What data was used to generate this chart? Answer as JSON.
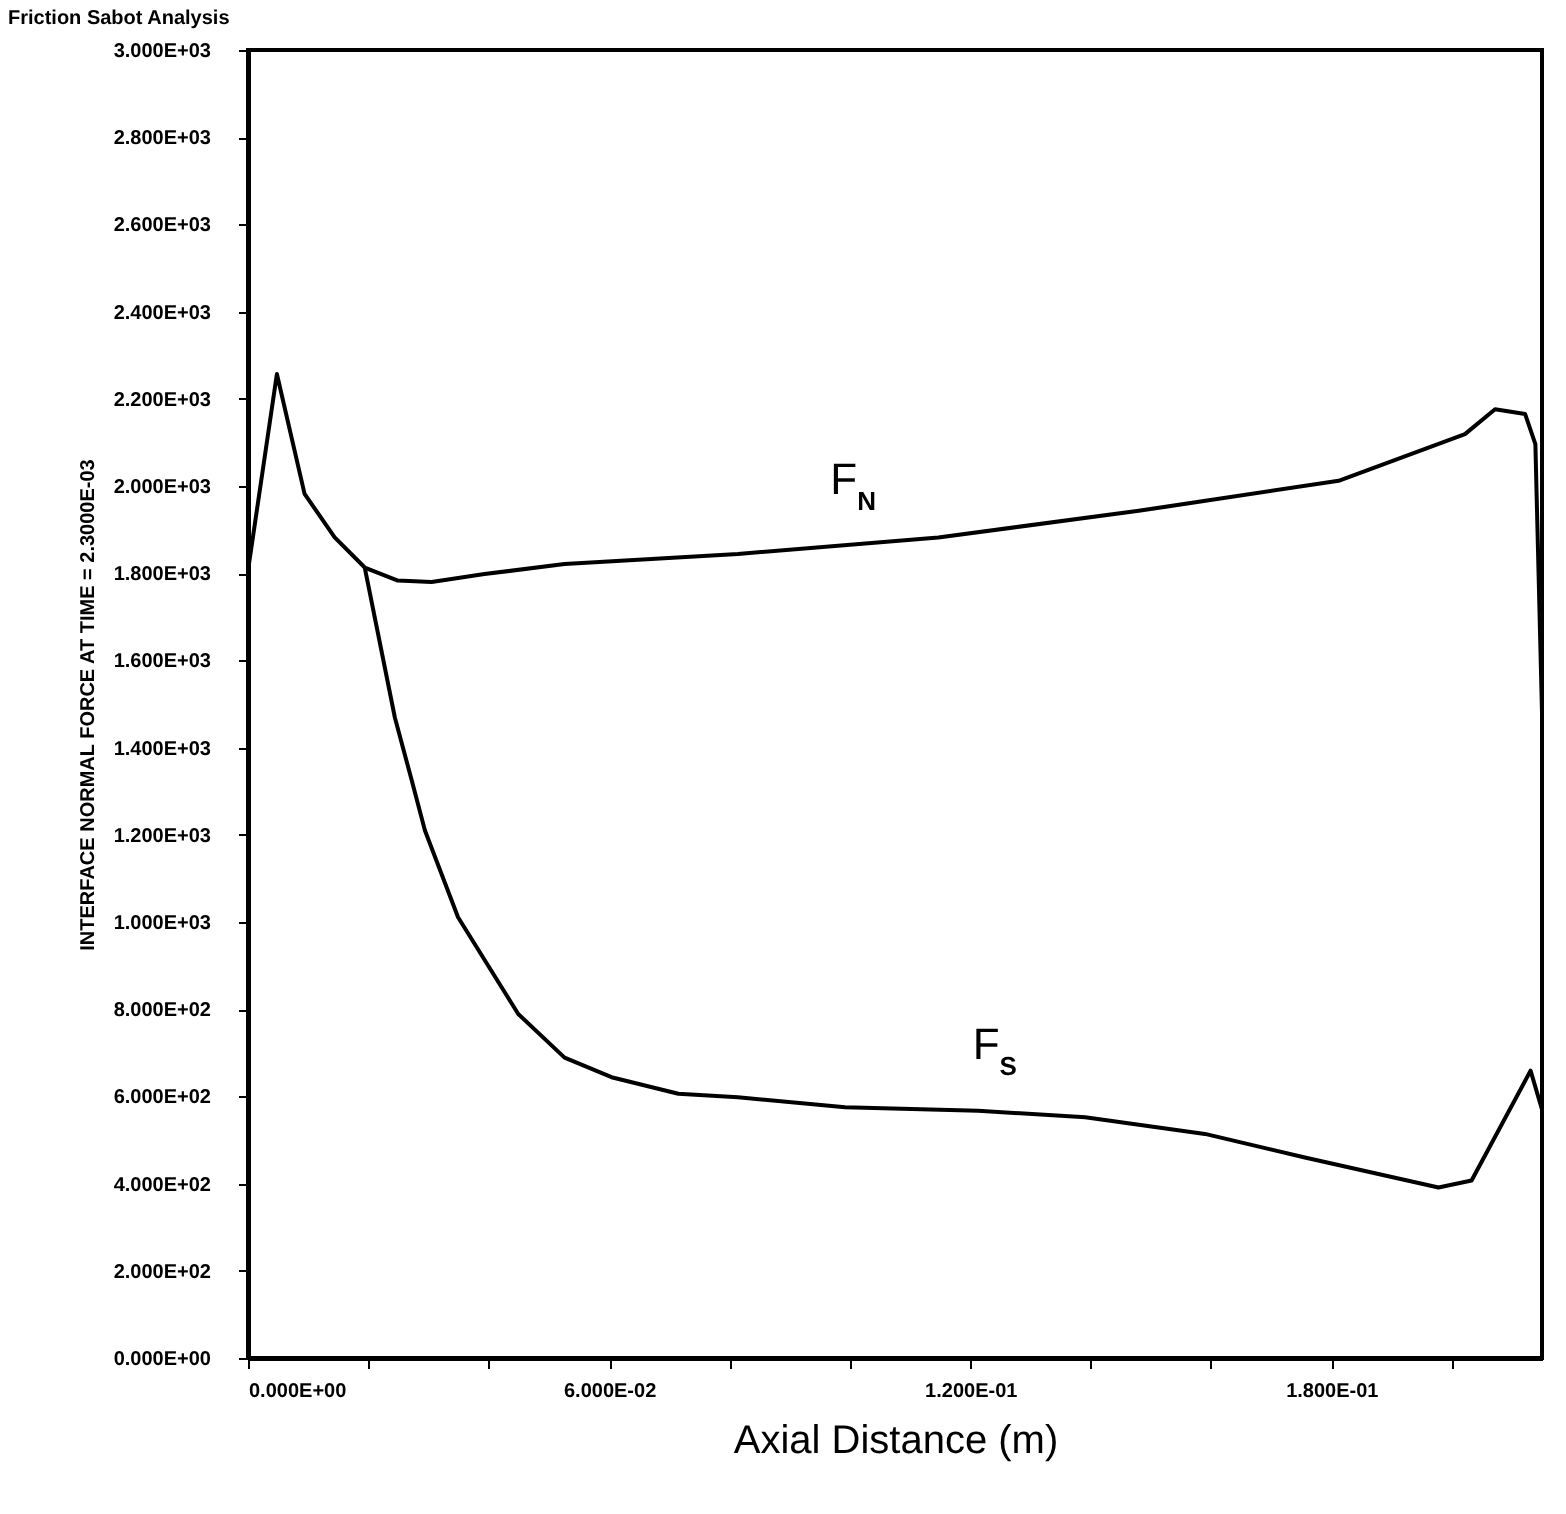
{
  "chart_data": {
    "type": "line",
    "title": "Friction Sabot Analysis",
    "xlabel": "Axial Distance (m)",
    "ylabel": "INTERFACE NORMAL FORCE AT TIME = 2.3000E-03",
    "xlim": [
      0,
      0.215
    ],
    "ylim": [
      0,
      3000
    ],
    "xticks": [
      {
        "value": 0,
        "label": "0.000E+00"
      },
      {
        "value": 0.02,
        "label": null
      },
      {
        "value": 0.04,
        "label": null
      },
      {
        "value": 0.06,
        "label": "6.000E-02"
      },
      {
        "value": 0.08,
        "label": null
      },
      {
        "value": 0.1,
        "label": null
      },
      {
        "value": 0.12,
        "label": "1.200E-01"
      },
      {
        "value": 0.14,
        "label": null
      },
      {
        "value": 0.16,
        "label": null
      },
      {
        "value": 0.18,
        "label": "1.800E-01"
      },
      {
        "value": 0.2,
        "label": null
      }
    ],
    "yticks": [
      {
        "value": 0,
        "label": "0.000E+00"
      },
      {
        "value": 200,
        "label": "2.000E+02"
      },
      {
        "value": 400,
        "label": "4.000E+02"
      },
      {
        "value": 600,
        "label": "6.000E+02"
      },
      {
        "value": 800,
        "label": "8.000E+02"
      },
      {
        "value": 1000,
        "label": "1.000E+03"
      },
      {
        "value": 1200,
        "label": "1.200E+03"
      },
      {
        "value": 1400,
        "label": "1.400E+03"
      },
      {
        "value": 1600,
        "label": "1.600E+03"
      },
      {
        "value": 1800,
        "label": "1.800E+03"
      },
      {
        "value": 2000,
        "label": "2.000E+03"
      },
      {
        "value": 2200,
        "label": "2.200E+03"
      },
      {
        "value": 2400,
        "label": "2.400E+03"
      },
      {
        "value": 2600,
        "label": "2.600E+03"
      },
      {
        "value": 2800,
        "label": "2.800E+03"
      },
      {
        "value": 3000,
        "label": "3.000E+03"
      }
    ],
    "grid": false,
    "legend": false,
    "marker": "none",
    "line_style": "solid",
    "series": [
      {
        "name": "F$_{N}$",
        "color": "#000000",
        "x": [
          0,
          0.0048,
          0.0094,
          0.0144,
          0.0194,
          0.0249,
          0.0305,
          0.0393,
          0.0526,
          0.0814,
          0.1147,
          0.148,
          0.1812,
          0.2022,
          0.2072,
          0.2122,
          0.2139,
          0.215
        ],
        "values": [
          1806,
          2257,
          1982,
          1882,
          1813,
          1783,
          1780,
          1798,
          1821,
          1844,
          1882,
          1943,
          2012,
          2119,
          2176,
          2165,
          2096,
          1480
        ]
      },
      {
        "name": "F$_{S}$",
        "color": "#000000",
        "x": [
          0.0194,
          0.0244,
          0.0272,
          0.0294,
          0.0349,
          0.0449,
          0.0526,
          0.0604,
          0.0715,
          0.0814,
          0.0992,
          0.1213,
          0.1391,
          0.159,
          0.1756,
          0.1978,
          0.2033,
          0.2131,
          0.215
        ],
        "values": [
          1813,
          1469,
          1325,
          1210,
          1011,
          789,
          689,
          644,
          606,
          598,
          575,
          567,
          552,
          514,
          460,
          391,
          407,
          659,
          570
        ]
      }
    ]
  }
}
